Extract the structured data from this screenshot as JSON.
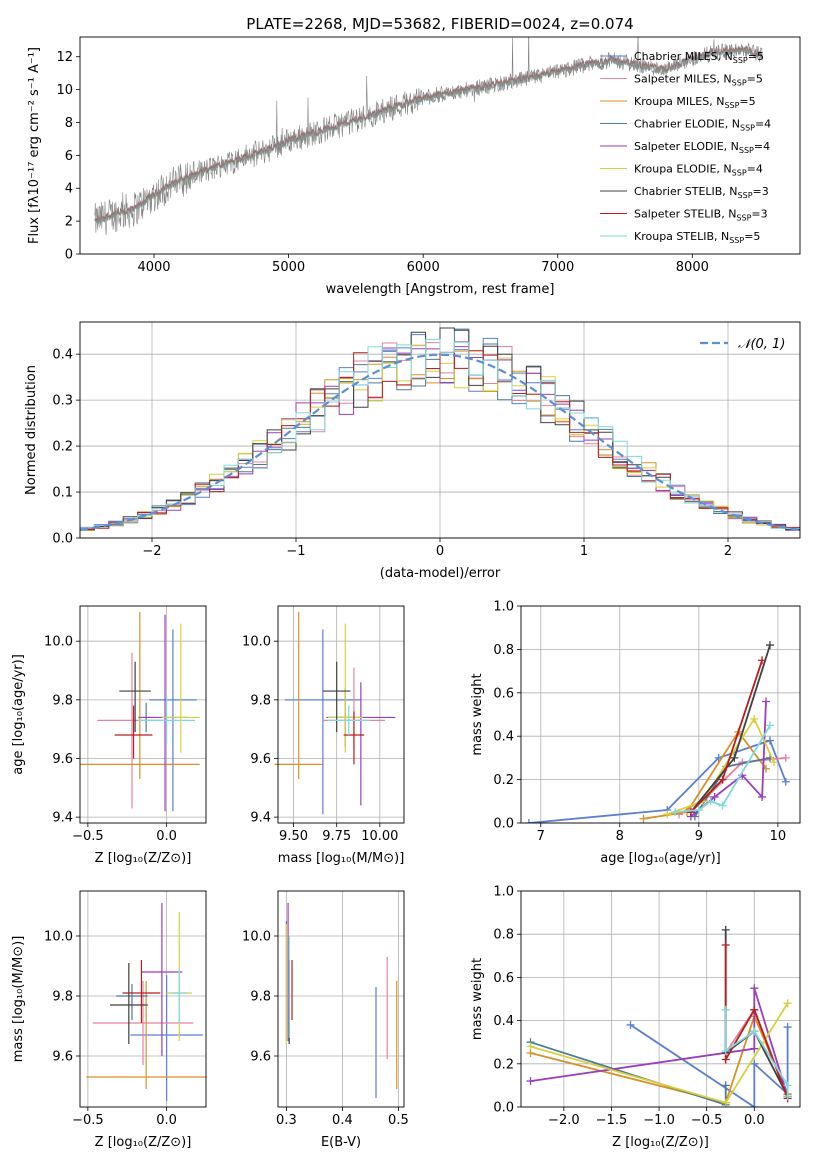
{
  "title": "PLATE=2268, MJD=53682, FIBERID=0024, z=0.074",
  "model_colors": [
    "#5B7FD1",
    "#E882A0",
    "#D89028",
    "#4E7A9C",
    "#9B3EBE",
    "#D8D03A",
    "#404040",
    "#B81E1E",
    "#7ED8DC"
  ],
  "chart_data": [
    {
      "id": "spectrum",
      "type": "line",
      "xlabel": "wavelength [Angstrom, rest frame]",
      "ylabel": "Flux [fλ10⁻¹⁷ erg cm⁻² s⁻¹ A⁻¹]",
      "xlim": [
        3450,
        8800
      ],
      "ylim": [
        0,
        13.2
      ],
      "xticks": [
        4000,
        5000,
        6000,
        7000,
        8000
      ],
      "yticks": [
        0,
        2,
        4,
        6,
        8,
        10,
        12
      ],
      "grid": false,
      "legend_position": "right",
      "data_color": "#808080",
      "continuum_x": [
        3560,
        3700,
        3850,
        4000,
        4100,
        4200,
        4400,
        4600,
        4800,
        5000,
        5200,
        5400,
        5600,
        5800,
        6000,
        6200,
        6400,
        6600,
        6800,
        7000,
        7200,
        7400,
        7600,
        7800,
        8000,
        8200,
        8400,
        8520
      ],
      "continuum_y": [
        2.0,
        2.4,
        2.7,
        3.6,
        4.1,
        4.5,
        5.1,
        5.7,
        6.2,
        6.9,
        7.4,
        7.9,
        8.4,
        9.0,
        9.5,
        9.8,
        10.1,
        10.4,
        10.7,
        11.1,
        11.5,
        11.8,
        11.5,
        11.2,
        11.9,
        12.3,
        12.4,
        12.1
      ],
      "legend": [
        {
          "label": "Chabrier MILES, N",
          "sub": "SSP",
          "suffix": "=5"
        },
        {
          "label": "Salpeter MILES, N",
          "sub": "SSP",
          "suffix": "=5"
        },
        {
          "label": "Kroupa MILES, N",
          "sub": "SSP",
          "suffix": "=5"
        },
        {
          "label": "Chabrier ELODIE, N",
          "sub": "SSP",
          "suffix": "=4"
        },
        {
          "label": "Salpeter ELODIE, N",
          "sub": "SSP",
          "suffix": "=4"
        },
        {
          "label": "Kroupa ELODIE, N",
          "sub": "SSP",
          "suffix": "=4"
        },
        {
          "label": "Chabrier STELIB, N",
          "sub": "SSP",
          "suffix": "=3"
        },
        {
          "label": "Salpeter STELIB, N",
          "sub": "SSP",
          "suffix": "=3"
        },
        {
          "label": "Kroupa STELIB, N",
          "sub": "SSP",
          "suffix": "=5"
        }
      ]
    },
    {
      "id": "residuals",
      "type": "histogram",
      "xlabel": "(data-model)/error",
      "ylabel": "Normed distribution",
      "xlim": [
        -2.5,
        2.5
      ],
      "ylim": [
        0,
        0.47
      ],
      "xticks": [
        -2,
        -1,
        0,
        1,
        2
      ],
      "yticks": [
        0.0,
        0.1,
        0.2,
        0.3,
        0.4
      ],
      "grid": true,
      "legend_position": "top-right",
      "legend": "𝒩(0, 1)",
      "bin_width": 0.1,
      "gaussian_mean": 0,
      "gaussian_sigma": 1
    },
    {
      "id": "age-vs-z",
      "type": "errorbar",
      "xlabel": "Z [log₁₀(Z/Z⊙)]",
      "ylabel": "age  [log₁₀(age/yr)]",
      "xlim": [
        -0.55,
        0.25
      ],
      "ylim": [
        9.38,
        10.12
      ],
      "xticks": [
        -0.5,
        0.0
      ],
      "yticks": [
        9.4,
        9.6,
        9.8,
        10.0
      ],
      "grid": true,
      "points": [
        {
          "x": 0.04,
          "y": 9.8,
          "xerr": 0.15,
          "yerr": [
            0.38,
            0.24
          ]
        },
        {
          "x": -0.22,
          "y": 9.73,
          "xerr": 0.22,
          "yerr": [
            0.3,
            0.23
          ]
        },
        {
          "x": -0.17,
          "y": 9.58,
          "xerr": 0.38,
          "yerr": [
            0.05,
            0.52
          ]
        },
        {
          "x": -0.13,
          "y": 9.74,
          "xerr": 0.05,
          "yerr": [
            0.05,
            0.05
          ]
        },
        {
          "x": -0.01,
          "y": 9.74,
          "xerr": 0.15,
          "yerr": [
            0.32,
            0.35
          ]
        },
        {
          "x": 0.09,
          "y": 9.74,
          "xerr": 0.12,
          "yerr": [
            0.12,
            0.32
          ]
        },
        {
          "x": -0.2,
          "y": 9.83,
          "xerr": 0.1,
          "yerr": [
            0.14,
            0.1
          ]
        },
        {
          "x": -0.21,
          "y": 9.68,
          "xerr": 0.12,
          "yerr": [
            0.08,
            0.1
          ]
        },
        {
          "x": 0.0,
          "y": 9.73,
          "xerr": 0.18,
          "yerr": [
            0.08,
            0.08
          ]
        }
      ]
    },
    {
      "id": "age-vs-mass",
      "type": "errorbar",
      "xlabel": "mass [log₁₀(M/M⊙)]",
      "ylabel": "",
      "xlim": [
        9.41,
        10.14
      ],
      "ylim": [
        9.38,
        10.12
      ],
      "xticks": [
        9.5,
        9.75,
        10.0
      ],
      "xticklabels": [
        "9.50",
        "9.75",
        "10.00"
      ],
      "yticks": [
        9.4,
        9.6,
        9.8,
        10.0
      ],
      "grid": true,
      "points": [
        {
          "x": 9.67,
          "y": 9.8,
          "xerr": 0.22,
          "yerr": [
            0.39,
            0.24
          ]
        },
        {
          "x": 9.85,
          "y": 9.73,
          "xerr": 0.18,
          "yerr": [
            0.1,
            0.18
          ]
        },
        {
          "x": 9.53,
          "y": 9.58,
          "xerr": 0.14,
          "yerr": [
            0.05,
            0.52
          ]
        },
        {
          "x": 9.8,
          "y": 9.74,
          "xerr": 0.1,
          "yerr": [
            0.1,
            0.1
          ]
        },
        {
          "x": 9.89,
          "y": 9.74,
          "xerr": 0.2,
          "yerr": [
            0.3,
            0.12
          ]
        },
        {
          "x": 9.8,
          "y": 9.74,
          "xerr": 0.1,
          "yerr": [
            0.12,
            0.32
          ]
        },
        {
          "x": 9.75,
          "y": 9.83,
          "xerr": 0.08,
          "yerr": [
            0.14,
            0.1
          ]
        },
        {
          "x": 9.85,
          "y": 9.68,
          "xerr": 0.06,
          "yerr": [
            0.1,
            0.08
          ]
        },
        {
          "x": 9.82,
          "y": 9.73,
          "xerr": 0.12,
          "yerr": [
            0.05,
            0.05
          ]
        }
      ]
    },
    {
      "id": "weight-vs-age",
      "type": "line",
      "xlabel": "age  [log₁₀(age/yr)]",
      "ylabel": "mass weight",
      "xlim": [
        6.75,
        10.28
      ],
      "ylim": [
        0,
        1
      ],
      "xticks": [
        7,
        8,
        9,
        10
      ],
      "yticks": [
        0.0,
        0.2,
        0.4,
        0.6,
        0.8,
        1.0
      ],
      "grid": true,
      "series": [
        {
          "x": [
            6.85,
            8.6,
            9.25,
            9.9,
            10.1
          ],
          "y": [
            0.0,
            0.06,
            0.3,
            0.38,
            0.19
          ]
        },
        {
          "x": [
            8.75,
            9.1,
            9.55,
            10.1
          ],
          "y": [
            0.04,
            0.12,
            0.28,
            0.3
          ]
        },
        {
          "x": [
            8.3,
            8.85,
            9.5,
            9.85
          ],
          "y": [
            0.02,
            0.05,
            0.42,
            0.25
          ]
        },
        {
          "x": [
            8.95,
            9.35,
            9.9
          ],
          "y": [
            0.03,
            0.26,
            0.3
          ]
        },
        {
          "x": [
            8.9,
            9.2,
            9.55,
            9.8,
            9.85
          ],
          "y": [
            0.03,
            0.12,
            0.22,
            0.12,
            0.56
          ]
        },
        {
          "x": [
            8.6,
            9.05,
            9.7,
            9.95
          ],
          "y": [
            0.04,
            0.1,
            0.48,
            0.28
          ]
        },
        {
          "x": [
            8.9,
            9.45,
            9.9
          ],
          "y": [
            0.05,
            0.3,
            0.82
          ]
        },
        {
          "x": [
            8.9,
            9.3,
            9.8
          ],
          "y": [
            0.05,
            0.2,
            0.75
          ]
        },
        {
          "x": [
            8.7,
            9.0,
            9.15,
            9.3,
            9.9
          ],
          "y": [
            0.05,
            0.06,
            0.1,
            0.08,
            0.45
          ]
        }
      ]
    },
    {
      "id": "mass-vs-z",
      "type": "errorbar",
      "xlabel": "Z [log₁₀(Z/Z⊙)]",
      "ylabel": "mass [log₁₀(M/M⊙)]",
      "xlim": [
        -0.55,
        0.25
      ],
      "ylim": [
        9.43,
        10.15
      ],
      "xticks": [
        -0.5,
        0.0
      ],
      "yticks": [
        9.6,
        9.8,
        10.0
      ],
      "grid": true,
      "points": [
        {
          "x": 0.0,
          "y": 9.67,
          "xerr": 0.23,
          "yerr": [
            0.22,
            0.2
          ]
        },
        {
          "x": -0.15,
          "y": 9.71,
          "xerr": 0.32,
          "yerr": [
            0.14,
            0.14
          ]
        },
        {
          "x": -0.13,
          "y": 9.53,
          "xerr": 0.38,
          "yerr": [
            0.04,
            0.32
          ]
        },
        {
          "x": -0.22,
          "y": 9.8,
          "xerr": 0.1,
          "yerr": [
            0.08,
            0.04
          ]
        },
        {
          "x": -0.03,
          "y": 9.88,
          "xerr": 0.13,
          "yerr": [
            0.28,
            0.23
          ]
        },
        {
          "x": 0.08,
          "y": 9.81,
          "xerr": 0.08,
          "yerr": [
            0.16,
            0.27
          ]
        },
        {
          "x": -0.24,
          "y": 9.77,
          "xerr": 0.12,
          "yerr": [
            0.13,
            0.14
          ]
        },
        {
          "x": -0.16,
          "y": 9.81,
          "xerr": 0.12,
          "yerr": [
            0.1,
            0.11
          ]
        },
        {
          "x": 0.08,
          "y": 9.81,
          "xerr": 0.05,
          "yerr": [
            0.1,
            0.08
          ]
        }
      ]
    },
    {
      "id": "mass-vs-ebv",
      "type": "errorbar",
      "xlabel": "E(B-V)",
      "ylabel": "",
      "xlim": [
        0.285,
        0.51
      ],
      "ylim": [
        9.43,
        10.15
      ],
      "xticks": [
        0.3,
        0.4,
        0.5
      ],
      "yticks": [
        9.6,
        9.8,
        10.0
      ],
      "grid": true,
      "points": [
        {
          "x": 0.46,
          "y": 9.66,
          "xerr": 0,
          "yerr": [
            0.2,
            0.17
          ]
        },
        {
          "x": 0.48,
          "y": 9.76,
          "xerr": 0,
          "yerr": [
            0.17,
            0.17
          ]
        },
        {
          "x": 0.497,
          "y": 9.67,
          "xerr": 0,
          "yerr": [
            0.18,
            0.18
          ]
        },
        {
          "x": 0.3,
          "y": 9.85,
          "xerr": 0,
          "yerr": [
            0.2,
            0.2
          ]
        },
        {
          "x": 0.303,
          "y": 9.88,
          "xerr": 0,
          "yerr": [
            0.23,
            0.23
          ]
        },
        {
          "x": 0.3,
          "y": 9.81,
          "xerr": 0,
          "yerr": [
            0.17,
            0.23
          ]
        },
        {
          "x": 0.305,
          "y": 9.78,
          "xerr": 0,
          "yerr": [
            0.14,
            0.14
          ]
        },
        {
          "x": 0.31,
          "y": 9.82,
          "xerr": 0,
          "yerr": [
            0.1,
            0.1
          ]
        },
        {
          "x": 0.305,
          "y": 9.83,
          "xerr": 0,
          "yerr": [
            0.17,
            0.17
          ]
        }
      ]
    },
    {
      "id": "weight-vs-z",
      "type": "line",
      "xlabel": "Z [log₁₀(Z/Z⊙)]",
      "ylabel": "mass weight",
      "xlim": [
        -2.45,
        0.48
      ],
      "ylim": [
        0,
        1
      ],
      "xticks": [
        -2.0,
        -1.5,
        -1.0,
        -0.5,
        0.0
      ],
      "yticks": [
        0.0,
        0.2,
        0.4,
        0.6,
        0.8,
        1.0
      ],
      "grid": true,
      "series": [
        {
          "x": [
            -1.3,
            0.0,
            0.0,
            0.35,
            0.35
          ],
          "y": [
            0.38,
            0.0,
            0.2,
            0.06,
            0.37
          ]
        },
        {
          "x": [
            -0.3,
            0.0,
            0.35
          ],
          "y": [
            0.25,
            0.45,
            0.05
          ]
        },
        {
          "x": [
            -2.35,
            -0.3,
            0.0,
            0.35
          ],
          "y": [
            0.25,
            0.02,
            0.42,
            0.06
          ]
        },
        {
          "x": [
            -2.35,
            -0.3,
            -0.3
          ],
          "y": [
            0.3,
            0.01,
            0.1
          ]
        },
        {
          "x": [
            -2.35,
            0.0,
            0.0,
            0.35
          ],
          "y": [
            0.12,
            0.27,
            0.55,
            0.05
          ]
        },
        {
          "x": [
            -2.35,
            -0.3,
            0.35
          ],
          "y": [
            0.28,
            0.02,
            0.48
          ]
        },
        {
          "x": [
            -0.3,
            -0.3,
            0.0,
            0.35
          ],
          "y": [
            0.82,
            0.25,
            0.35,
            0.05
          ]
        },
        {
          "x": [
            -0.3,
            -0.3,
            0.0,
            0.35
          ],
          "y": [
            0.75,
            0.22,
            0.45,
            0.04
          ]
        },
        {
          "x": [
            -0.3,
            -0.3,
            0.0,
            0.35,
            0.35
          ],
          "y": [
            0.45,
            0.26,
            0.35,
            0.1,
            0.05
          ]
        }
      ]
    }
  ]
}
